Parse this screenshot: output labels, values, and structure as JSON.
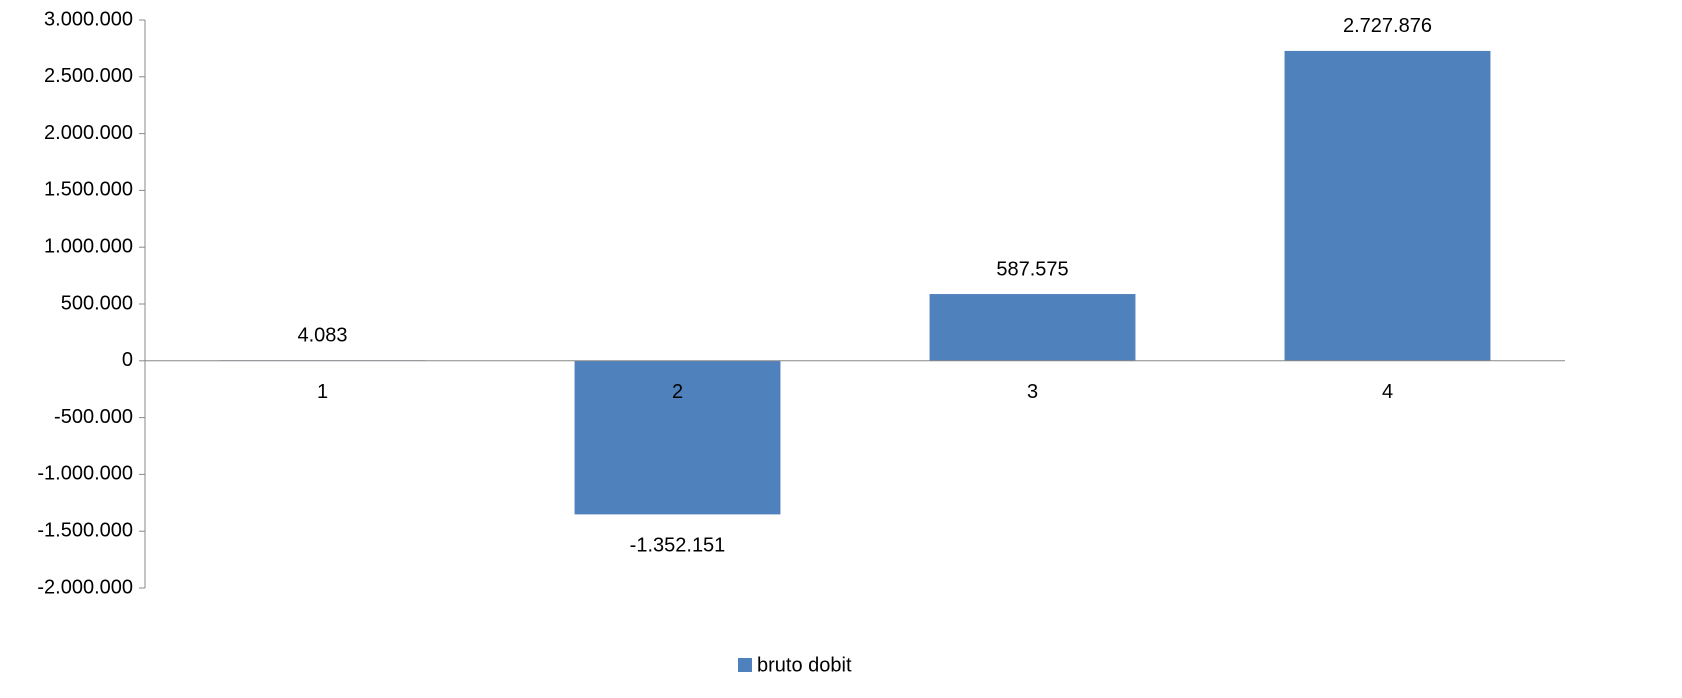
{
  "chart_data": {
    "type": "bar",
    "categories": [
      "1",
      "2",
      "3",
      "4"
    ],
    "series": [
      {
        "name": "bruto dobit",
        "color": "#4f81bd",
        "values": [
          4083,
          -1352151,
          587575,
          2727876
        ],
        "value_labels": [
          "4.083",
          "-1.352.151",
          "587.575",
          "2.727.876"
        ]
      }
    ],
    "ylim": [
      -2000000,
      3000000
    ],
    "yticks": [
      {
        "value": -2000000,
        "label": "-2.000.000"
      },
      {
        "value": -1500000,
        "label": "-1.500.000"
      },
      {
        "value": -1000000,
        "label": "-1.000.000"
      },
      {
        "value": -500000,
        "label": "-500.000"
      },
      0,
      {
        "value": 500000,
        "label": "500.000"
      },
      {
        "value": 1000000,
        "label": "1.000.000"
      },
      {
        "value": 1500000,
        "label": "1.500.000"
      },
      {
        "value": 2000000,
        "label": "2.000.000"
      },
      {
        "value": 2500000,
        "label": "2.500.000"
      },
      {
        "value": 3000000,
        "label": "3.000.000"
      }
    ],
    "grid": false,
    "legend": "bottom"
  }
}
